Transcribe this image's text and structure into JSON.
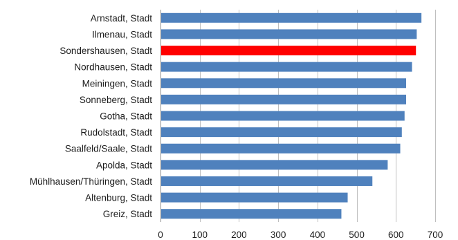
{
  "chart_data": {
    "type": "bar",
    "orientation": "horizontal",
    "categories": [
      "Arnstadt, Stadt",
      "Ilmenau, Stadt",
      "Sondershausen, Stadt",
      "Nordhausen, Stadt",
      "Meiningen, Stadt",
      "Sonneberg, Stadt",
      "Gotha, Stadt",
      "Rudolstadt, Stadt",
      "Saalfeld/Saale, Stadt",
      "Apolda, Stadt",
      "Mühlhausen/Thüringen, Stadt",
      "Altenburg, Stadt",
      "Greiz, Stadt"
    ],
    "values": [
      665,
      653,
      651,
      641,
      626,
      626,
      622,
      615,
      611,
      579,
      540,
      477,
      461
    ],
    "highlight_index": 2,
    "colors": {
      "bar": "#4f81bd",
      "highlight": "#ff0000"
    },
    "xlim": [
      0,
      700
    ],
    "xticks": [
      0,
      100,
      200,
      300,
      400,
      500,
      600,
      700
    ],
    "xtick_labels": [
      "0",
      "100",
      "200",
      "300",
      "400",
      "500",
      "600",
      "700"
    ],
    "grid": "vertical",
    "title": "",
    "xlabel": "",
    "ylabel": ""
  }
}
